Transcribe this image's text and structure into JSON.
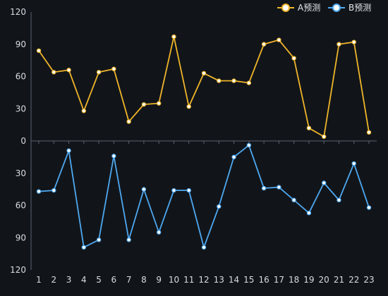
{
  "chart_data": {
    "type": "line",
    "x": [
      1,
      2,
      3,
      4,
      5,
      6,
      7,
      8,
      9,
      10,
      11,
      12,
      13,
      14,
      15,
      16,
      17,
      18,
      19,
      20,
      21,
      22,
      23
    ],
    "series": [
      {
        "name": "A预测",
        "color": "#f0b429",
        "values": [
          84,
          64,
          66,
          28,
          64,
          67,
          18,
          34,
          35,
          97,
          32,
          63,
          56,
          56,
          54,
          90,
          94,
          77,
          12,
          4,
          90,
          92,
          8
        ]
      },
      {
        "name": "B预测",
        "color": "#4ea8f0",
        "values": [
          47,
          46,
          9,
          99,
          92,
          14,
          92,
          45,
          85,
          46,
          46,
          99,
          61,
          15,
          4,
          44,
          43,
          55,
          67,
          39,
          55,
          21,
          62
        ]
      }
    ],
    "top_axis": {
      "ylim": [
        0,
        120
      ],
      "ticks": [
        0,
        30,
        60,
        90,
        120
      ]
    },
    "bottom_axis": {
      "ylim": [
        0,
        120
      ],
      "inverse": true,
      "ticks": [
        0,
        30,
        60,
        90,
        120
      ]
    },
    "legend_position": "top-right",
    "grid": false
  }
}
